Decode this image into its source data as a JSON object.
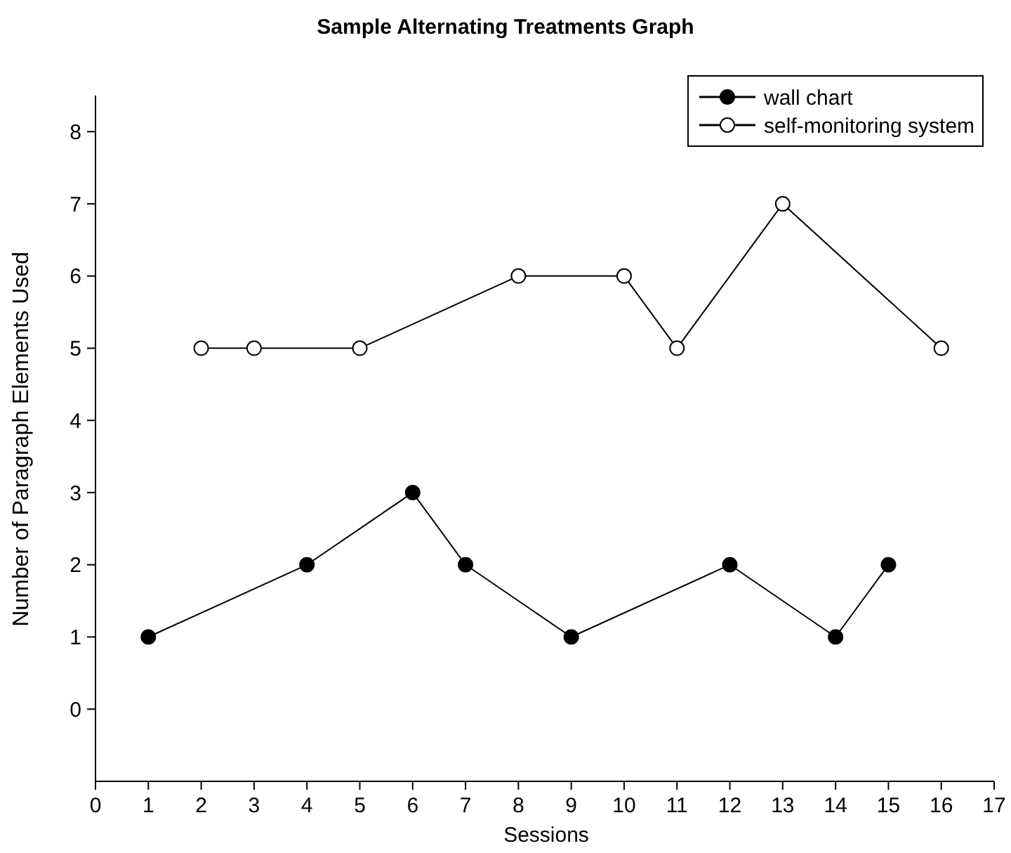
{
  "chart_data": {
    "type": "line",
    "title": "Sample Alternating Treatments Graph",
    "xlabel": "Sessions",
    "ylabel": "Number of Paragraph Elements Used",
    "xlim": [
      0,
      17
    ],
    "xticks": [
      0,
      1,
      2,
      3,
      4,
      5,
      6,
      7,
      8,
      9,
      10,
      11,
      12,
      13,
      14,
      15,
      16,
      17
    ],
    "ylim": [
      -1,
      8.5
    ],
    "yticks": [
      0,
      1,
      2,
      3,
      4,
      5,
      6,
      7,
      8
    ],
    "grid": false,
    "legend": "top right",
    "marker": "circle",
    "line_style": "solid",
    "series": [
      {
        "name": "wall chart",
        "color": "#000000",
        "x": [
          1,
          4,
          6,
          7,
          9,
          12,
          14,
          15
        ],
        "values": [
          1,
          2,
          3,
          2,
          1,
          2,
          1,
          2
        ]
      },
      {
        "name": "self-monitoring system",
        "color": "#ffffff",
        "x": [
          2,
          3,
          5,
          8,
          10,
          11,
          13,
          16
        ],
        "values": [
          5,
          5,
          5,
          6,
          6,
          5,
          7,
          5
        ]
      }
    ]
  }
}
